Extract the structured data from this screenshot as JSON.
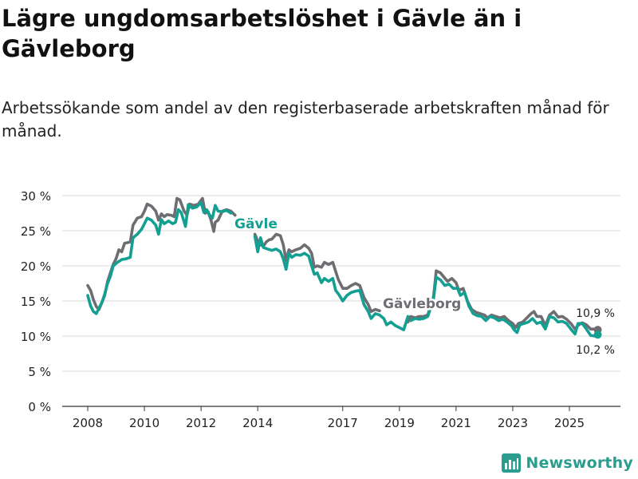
{
  "title": "Lägre ungdomsarbetslöshet i Gävle än i Gävleborg",
  "subtitle": "Arbetssökande som andel av den registerbaserade arbetskraften månad för månad.",
  "brand": {
    "name": "Newsworthy",
    "color": "#2a9d8f"
  },
  "chart_data": {
    "type": "line",
    "title": "Lägre ungdomsarbetslöshet i Gävle än i Gävleborg",
    "xlabel": "",
    "ylabel": "",
    "ylim": [
      0,
      30
    ],
    "xlim": [
      2008.0,
      2026.1
    ],
    "grid": true,
    "y_ticks": [
      0,
      5,
      10,
      15,
      20,
      25,
      30
    ],
    "y_tick_labels": [
      "0 %",
      "5 %",
      "10 %",
      "15 %",
      "20 %",
      "25 %",
      "30 %"
    ],
    "x_ticks": [
      2008,
      2010,
      2012,
      2014,
      2017,
      2019,
      2021,
      2023,
      2025
    ],
    "x_tick_labels": [
      "2008",
      "2010",
      "2012",
      "2014",
      "2017",
      "2019",
      "2021",
      "2023",
      "2025"
    ],
    "series": [
      {
        "name": "Gävleborg",
        "label": "Gävleborg",
        "color": "#6e6d72",
        "end_label": "10,9 %",
        "points": [
          [
            2008.0,
            17.2
          ],
          [
            2008.1,
            16.5
          ],
          [
            2008.2,
            15.2
          ],
          [
            2008.3,
            14.2
          ],
          [
            2008.4,
            13.8
          ],
          [
            2008.5,
            14.8
          ],
          [
            2008.6,
            15.8
          ],
          [
            2008.7,
            17.8
          ],
          [
            2008.8,
            19.0
          ],
          [
            2008.9,
            20.2
          ],
          [
            2009.0,
            21.0
          ],
          [
            2009.1,
            22.3
          ],
          [
            2009.2,
            22.0
          ],
          [
            2009.3,
            23.2
          ],
          [
            2009.5,
            23.4
          ],
          [
            2009.6,
            25.8
          ],
          [
            2009.75,
            26.8
          ],
          [
            2009.9,
            27.0
          ],
          [
            2010.0,
            27.8
          ],
          [
            2010.1,
            28.8
          ],
          [
            2010.25,
            28.5
          ],
          [
            2010.4,
            27.8
          ],
          [
            2010.5,
            26.5
          ],
          [
            2010.6,
            27.4
          ],
          [
            2010.7,
            27.0
          ],
          [
            2010.8,
            27.3
          ],
          [
            2010.95,
            27.2
          ],
          [
            2011.05,
            27.0
          ],
          [
            2011.15,
            29.6
          ],
          [
            2011.25,
            29.4
          ],
          [
            2011.4,
            27.8
          ],
          [
            2011.5,
            27.2
          ],
          [
            2011.6,
            28.8
          ],
          [
            2011.75,
            28.6
          ],
          [
            2011.9,
            28.8
          ],
          [
            2012.05,
            29.6
          ],
          [
            2012.15,
            27.5
          ],
          [
            2012.25,
            27.7
          ],
          [
            2012.35,
            26.5
          ],
          [
            2012.45,
            24.9
          ],
          [
            2012.5,
            26.2
          ],
          [
            2012.6,
            26.5
          ],
          [
            2012.75,
            27.8
          ],
          [
            2012.9,
            28.0
          ],
          [
            2013.05,
            27.8
          ],
          [
            2013.2,
            27.2
          ]
        ],
        "points_b": [
          [
            2013.9,
            24.5
          ],
          [
            2014.0,
            23.5
          ],
          [
            2014.1,
            23.0
          ],
          [
            2014.2,
            22.8
          ],
          [
            2014.3,
            23.4
          ],
          [
            2014.4,
            23.7
          ],
          [
            2014.5,
            23.8
          ],
          [
            2014.65,
            24.5
          ],
          [
            2014.8,
            24.3
          ],
          [
            2014.9,
            23.0
          ],
          [
            2015.0,
            20.8
          ],
          [
            2015.1,
            22.3
          ],
          [
            2015.2,
            22.0
          ],
          [
            2015.35,
            22.3
          ],
          [
            2015.5,
            22.5
          ],
          [
            2015.65,
            23.0
          ],
          [
            2015.8,
            22.5
          ],
          [
            2015.9,
            21.8
          ],
          [
            2016.0,
            19.8
          ],
          [
            2016.1,
            20.0
          ],
          [
            2016.25,
            19.8
          ],
          [
            2016.35,
            20.5
          ],
          [
            2016.5,
            20.2
          ],
          [
            2016.65,
            20.5
          ],
          [
            2016.75,
            19.2
          ],
          [
            2016.85,
            18.0
          ],
          [
            2017.0,
            16.8
          ],
          [
            2017.15,
            16.8
          ],
          [
            2017.3,
            17.2
          ],
          [
            2017.45,
            17.5
          ],
          [
            2017.6,
            17.2
          ],
          [
            2017.75,
            15.5
          ],
          [
            2017.9,
            14.5
          ],
          [
            2018.0,
            13.5
          ],
          [
            2018.15,
            13.8
          ],
          [
            2018.3,
            13.6
          ]
        ],
        "points_c": [
          [
            2019.3,
            12.0
          ],
          [
            2019.4,
            12.8
          ],
          [
            2019.55,
            12.6
          ],
          [
            2019.7,
            12.8
          ],
          [
            2019.85,
            12.8
          ],
          [
            2020.0,
            13.0
          ],
          [
            2020.2,
            15.5
          ],
          [
            2020.3,
            19.3
          ],
          [
            2020.45,
            19.0
          ],
          [
            2020.55,
            18.5
          ],
          [
            2020.7,
            17.8
          ],
          [
            2020.85,
            18.2
          ],
          [
            2021.0,
            17.6
          ],
          [
            2021.1,
            16.5
          ],
          [
            2021.25,
            16.8
          ],
          [
            2021.4,
            15.0
          ],
          [
            2021.55,
            13.8
          ],
          [
            2021.7,
            13.4
          ],
          [
            2021.85,
            13.2
          ],
          [
            2022.0,
            13.0
          ],
          [
            2022.1,
            12.6
          ],
          [
            2022.25,
            13.0
          ],
          [
            2022.4,
            12.8
          ],
          [
            2022.55,
            12.6
          ],
          [
            2022.7,
            12.8
          ],
          [
            2022.85,
            12.2
          ],
          [
            2023.0,
            11.8
          ],
          [
            2023.1,
            11.2
          ],
          [
            2023.2,
            11.8
          ],
          [
            2023.35,
            12.0
          ],
          [
            2023.5,
            12.6
          ],
          [
            2023.65,
            13.2
          ],
          [
            2023.75,
            13.5
          ],
          [
            2023.85,
            12.8
          ],
          [
            2024.0,
            12.8
          ],
          [
            2024.15,
            11.5
          ],
          [
            2024.3,
            13.0
          ],
          [
            2024.45,
            13.5
          ],
          [
            2024.6,
            12.7
          ],
          [
            2024.75,
            12.8
          ],
          [
            2024.9,
            12.4
          ],
          [
            2025.05,
            11.8
          ],
          [
            2025.2,
            11.0
          ],
          [
            2025.3,
            11.5
          ],
          [
            2025.45,
            11.9
          ],
          [
            2025.6,
            11.6
          ],
          [
            2025.75,
            11.0
          ],
          [
            2025.9,
            11.0
          ],
          [
            2026.0,
            10.9
          ]
        ]
      },
      {
        "name": "Gävle",
        "label": "Gävle",
        "color": "#139f92",
        "end_label": "10,2 %",
        "points": [
          [
            2008.0,
            15.8
          ],
          [
            2008.1,
            14.3
          ],
          [
            2008.2,
            13.5
          ],
          [
            2008.3,
            13.2
          ],
          [
            2008.4,
            14.0
          ],
          [
            2008.5,
            14.8
          ],
          [
            2008.6,
            16.0
          ],
          [
            2008.7,
            17.5
          ],
          [
            2008.8,
            18.5
          ],
          [
            2008.9,
            20.0
          ],
          [
            2009.05,
            20.5
          ],
          [
            2009.2,
            20.9
          ],
          [
            2009.35,
            21.0
          ],
          [
            2009.5,
            21.2
          ],
          [
            2009.6,
            24.0
          ],
          [
            2009.75,
            24.5
          ],
          [
            2009.9,
            25.2
          ],
          [
            2010.0,
            26.0
          ],
          [
            2010.1,
            26.8
          ],
          [
            2010.25,
            26.5
          ],
          [
            2010.4,
            25.8
          ],
          [
            2010.5,
            24.5
          ],
          [
            2010.6,
            26.6
          ],
          [
            2010.7,
            26.0
          ],
          [
            2010.85,
            26.4
          ],
          [
            2011.0,
            26.0
          ],
          [
            2011.1,
            26.2
          ],
          [
            2011.2,
            28.0
          ],
          [
            2011.3,
            27.6
          ],
          [
            2011.45,
            25.6
          ],
          [
            2011.55,
            28.7
          ],
          [
            2011.7,
            28.2
          ],
          [
            2011.85,
            28.4
          ],
          [
            2012.0,
            29.0
          ],
          [
            2012.1,
            27.6
          ],
          [
            2012.2,
            28.0
          ],
          [
            2012.3,
            27.2
          ],
          [
            2012.4,
            26.8
          ],
          [
            2012.5,
            28.6
          ],
          [
            2012.6,
            27.8
          ],
          [
            2012.75,
            27.7
          ],
          [
            2012.9,
            27.9
          ],
          [
            2013.05,
            27.5
          ]
        ],
        "points_b": [
          [
            2013.9,
            24.2
          ],
          [
            2014.0,
            22.0
          ],
          [
            2014.1,
            24.0
          ],
          [
            2014.2,
            22.6
          ],
          [
            2014.35,
            22.4
          ],
          [
            2014.5,
            22.2
          ],
          [
            2014.65,
            22.4
          ],
          [
            2014.8,
            22.0
          ],
          [
            2014.9,
            21.0
          ],
          [
            2015.0,
            19.5
          ],
          [
            2015.1,
            21.8
          ],
          [
            2015.2,
            21.2
          ],
          [
            2015.35,
            21.6
          ],
          [
            2015.5,
            21.5
          ],
          [
            2015.65,
            21.8
          ],
          [
            2015.8,
            21.4
          ],
          [
            2015.9,
            20.0
          ],
          [
            2016.0,
            18.8
          ],
          [
            2016.1,
            19.0
          ],
          [
            2016.25,
            17.6
          ],
          [
            2016.35,
            18.2
          ],
          [
            2016.5,
            17.8
          ],
          [
            2016.65,
            18.2
          ],
          [
            2016.75,
            16.5
          ],
          [
            2016.85,
            16.0
          ],
          [
            2017.0,
            15.0
          ],
          [
            2017.15,
            15.8
          ],
          [
            2017.3,
            16.2
          ],
          [
            2017.45,
            16.4
          ],
          [
            2017.6,
            16.5
          ],
          [
            2017.75,
            14.5
          ],
          [
            2017.9,
            13.5
          ],
          [
            2018.0,
            12.5
          ],
          [
            2018.15,
            13.2
          ],
          [
            2018.3,
            13.0
          ],
          [
            2018.45,
            12.5
          ],
          [
            2018.55,
            11.6
          ],
          [
            2018.7,
            12.0
          ],
          [
            2018.85,
            11.5
          ],
          [
            2019.0,
            11.2
          ],
          [
            2019.15,
            10.9
          ],
          [
            2019.3,
            12.8
          ]
        ],
        "points_c": [
          [
            2019.4,
            12.2
          ],
          [
            2019.55,
            12.5
          ],
          [
            2019.7,
            12.4
          ],
          [
            2019.85,
            12.5
          ],
          [
            2020.0,
            12.8
          ],
          [
            2020.2,
            15.2
          ],
          [
            2020.3,
            18.4
          ],
          [
            2020.45,
            18.0
          ],
          [
            2020.6,
            17.2
          ],
          [
            2020.75,
            17.4
          ],
          [
            2020.9,
            16.8
          ],
          [
            2021.05,
            16.8
          ],
          [
            2021.15,
            15.8
          ],
          [
            2021.3,
            16.2
          ],
          [
            2021.45,
            14.3
          ],
          [
            2021.6,
            13.2
          ],
          [
            2021.75,
            12.9
          ],
          [
            2021.9,
            12.8
          ],
          [
            2022.05,
            12.2
          ],
          [
            2022.2,
            12.8
          ],
          [
            2022.35,
            12.6
          ],
          [
            2022.5,
            12.2
          ],
          [
            2022.65,
            12.4
          ],
          [
            2022.8,
            12.0
          ],
          [
            2022.95,
            11.5
          ],
          [
            2023.05,
            10.9
          ],
          [
            2023.15,
            10.5
          ],
          [
            2023.25,
            11.6
          ],
          [
            2023.4,
            11.8
          ],
          [
            2023.55,
            12.0
          ],
          [
            2023.7,
            12.5
          ],
          [
            2023.85,
            11.8
          ],
          [
            2024.0,
            12.0
          ],
          [
            2024.15,
            11.0
          ],
          [
            2024.3,
            12.8
          ],
          [
            2024.45,
            12.6
          ],
          [
            2024.6,
            12.0
          ],
          [
            2024.75,
            12.1
          ],
          [
            2024.9,
            11.8
          ],
          [
            2025.05,
            11.0
          ],
          [
            2025.2,
            10.3
          ],
          [
            2025.3,
            11.8
          ],
          [
            2025.45,
            11.8
          ],
          [
            2025.6,
            11.0
          ],
          [
            2025.75,
            10.1
          ],
          [
            2025.9,
            10.0
          ],
          [
            2026.0,
            10.2
          ]
        ]
      }
    ]
  }
}
